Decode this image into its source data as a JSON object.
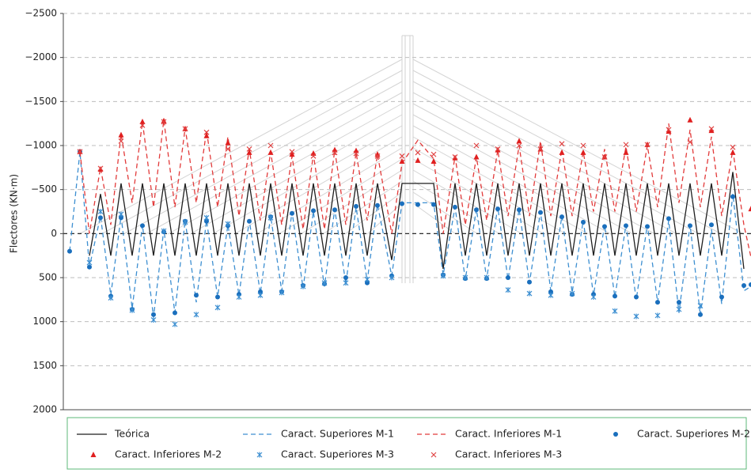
{
  "chart_data": {
    "type": "line",
    "y_label": "Flectores (KN·m)",
    "ylim": [
      -2500,
      2000
    ],
    "y_inverted": true,
    "yticks": [
      {
        "value": -2500,
        "label": "−2500"
      },
      {
        "value": -2000,
        "label": "−2000"
      },
      {
        "value": -1500,
        "label": "−1500"
      },
      {
        "value": -1000,
        "label": "−1000"
      },
      {
        "value": -500,
        "label": "−500"
      },
      0,
      500,
      1000,
      1500,
      2000
    ],
    "grid": true,
    "xlim": [
      0,
      869
    ],
    "x": [
      8,
      21,
      33,
      47,
      60,
      73,
      87,
      100,
      114,
      127,
      141,
      154,
      168,
      181,
      195,
      208,
      222,
      235,
      249,
      262,
      276,
      289,
      303,
      316,
      330,
      343,
      357,
      370,
      384,
      397,
      415,
      428,
      448,
      468,
      480,
      495,
      508,
      522,
      535,
      549,
      562,
      576,
      589,
      603,
      616,
      630,
      643,
      657,
      670,
      684,
      697,
      711,
      724,
      738,
      751,
      765,
      778,
      792,
      805,
      819,
      832,
      846,
      860,
      869
    ],
    "legend": "bottom",
    "series": [
      {
        "name": "Teórica",
        "color": "#1e1e1e",
        "style": "solid",
        "values": [
          null,
          null,
          250,
          -450,
          250,
          -570,
          250,
          -570,
          250,
          -570,
          250,
          -570,
          250,
          -570,
          250,
          -570,
          250,
          -570,
          250,
          -570,
          250,
          -570,
          250,
          -570,
          250,
          -570,
          250,
          -570,
          250,
          -570,
          300,
          -570,
          -570,
          -570,
          400,
          -570,
          250,
          -570,
          250,
          -570,
          250,
          -570,
          250,
          -570,
          250,
          -570,
          250,
          -570,
          250,
          -570,
          250,
          -570,
          250,
          -570,
          250,
          -570,
          250,
          -570,
          250,
          -570,
          250,
          -700,
          400,
          null
        ]
      },
      {
        "name": "Caract. Superiores M-1",
        "color": "#3d8fd1",
        "style": "dashed",
        "values": [
          200,
          -930,
          380,
          -200,
          700,
          -200,
          850,
          -100,
          950,
          -50,
          900,
          -150,
          780,
          -150,
          720,
          -100,
          700,
          -150,
          680,
          -200,
          650,
          -250,
          620,
          -250,
          600,
          -280,
          570,
          -300,
          540,
          -330,
          480,
          -350,
          -350,
          -350,
          470,
          -300,
          520,
          -280,
          510,
          -300,
          520,
          -280,
          560,
          -250,
          650,
          -200,
          670,
          -150,
          700,
          -100,
          720,
          -100,
          750,
          -100,
          780,
          -150,
          900,
          -100,
          930,
          -50,
          800,
          -450,
          650,
          600
        ]
      },
      {
        "name": "Caract. Inferiores M-1",
        "color": "#e23a3a",
        "style": "dashed",
        "values": [
          null,
          -930,
          0,
          -750,
          -100,
          -1130,
          -350,
          -1270,
          -300,
          -1290,
          -300,
          -1200,
          -350,
          -1170,
          -300,
          -1100,
          -200,
          -960,
          -150,
          -930,
          -100,
          -880,
          -50,
          -900,
          -50,
          -950,
          -100,
          -920,
          -150,
          -900,
          0,
          -800,
          -1060,
          -850,
          0,
          -880,
          -100,
          -870,
          -150,
          -950,
          -200,
          -1000,
          -200,
          -1050,
          -200,
          -960,
          -200,
          -930,
          -250,
          -960,
          -250,
          -990,
          -250,
          -1000,
          -300,
          -1250,
          -350,
          -1180,
          -300,
          -1100,
          -200,
          -950,
          -100,
          270
        ]
      },
      {
        "name": "Caract. Superiores M-2",
        "color": "#1a6fbd",
        "style": "marker",
        "marker": "circle",
        "values": [
          200,
          -930,
          380,
          -180,
          710,
          -180,
          860,
          -90,
          920,
          -20,
          900,
          -140,
          700,
          -140,
          720,
          -90,
          690,
          -140,
          660,
          -190,
          660,
          -230,
          590,
          -260,
          570,
          -270,
          500,
          -310,
          560,
          -320,
          480,
          -340,
          -330,
          -330,
          470,
          -300,
          510,
          -270,
          510,
          -280,
          500,
          -270,
          550,
          -240,
          660,
          -190,
          690,
          -130,
          690,
          -80,
          710,
          -90,
          720,
          -80,
          780,
          -170,
          780,
          -90,
          920,
          -100,
          720,
          -420,
          590,
          580
        ]
      },
      {
        "name": "Caract. Inferiores M-2",
        "color": "#e01f1f",
        "style": "marker",
        "marker": "triangle",
        "values": [
          null,
          -930,
          null,
          -730,
          null,
          -1120,
          null,
          -1270,
          null,
          -1280,
          null,
          -1190,
          null,
          -1110,
          null,
          -1030,
          null,
          -920,
          null,
          -920,
          null,
          -900,
          null,
          -910,
          null,
          -950,
          null,
          -940,
          null,
          -900,
          null,
          -820,
          -830,
          -820,
          null,
          -860,
          null,
          -870,
          null,
          -950,
          null,
          -1050,
          null,
          -960,
          null,
          -920,
          null,
          -920,
          null,
          -870,
          null,
          -920,
          null,
          -1010,
          null,
          -1160,
          null,
          -1290,
          null,
          -1170,
          null,
          -920,
          null,
          -280
        ]
      },
      {
        "name": "Caract. Superiores M-3",
        "color": "#3d8fd1",
        "style": "marker",
        "marker": "asterisk",
        "values": [
          null,
          null,
          330,
          -250,
          730,
          -220,
          870,
          null,
          980,
          -30,
          1030,
          -130,
          920,
          -180,
          840,
          -110,
          720,
          null,
          700,
          -180,
          670,
          null,
          600,
          null,
          560,
          null,
          560,
          null,
          520,
          null,
          500,
          null,
          null,
          null,
          480,
          null,
          500,
          null,
          500,
          null,
          640,
          null,
          680,
          null,
          700,
          null,
          680,
          null,
          720,
          null,
          880,
          null,
          940,
          null,
          930,
          null,
          860,
          null,
          820,
          null,
          null,
          null,
          null,
          null
        ]
      },
      {
        "name": "Caract. Inferiores M-3",
        "color": "#e04444",
        "style": "marker",
        "marker": "x",
        "values": [
          null,
          -930,
          null,
          -740,
          null,
          -1050,
          null,
          -1230,
          null,
          -1270,
          null,
          -1190,
          null,
          -1150,
          null,
          -960,
          null,
          -960,
          null,
          -1000,
          null,
          -930,
          null,
          -880,
          null,
          -920,
          null,
          -910,
          null,
          -880,
          null,
          -880,
          -920,
          -900,
          null,
          -870,
          null,
          -1000,
          null,
          -960,
          null,
          -1000,
          null,
          -960,
          null,
          -1020,
          null,
          -1000,
          null,
          -870,
          null,
          -1010,
          null,
          -1010,
          null,
          -1180,
          null,
          -1040,
          null,
          -1190,
          null,
          -980,
          null,
          null
        ]
      }
    ]
  }
}
